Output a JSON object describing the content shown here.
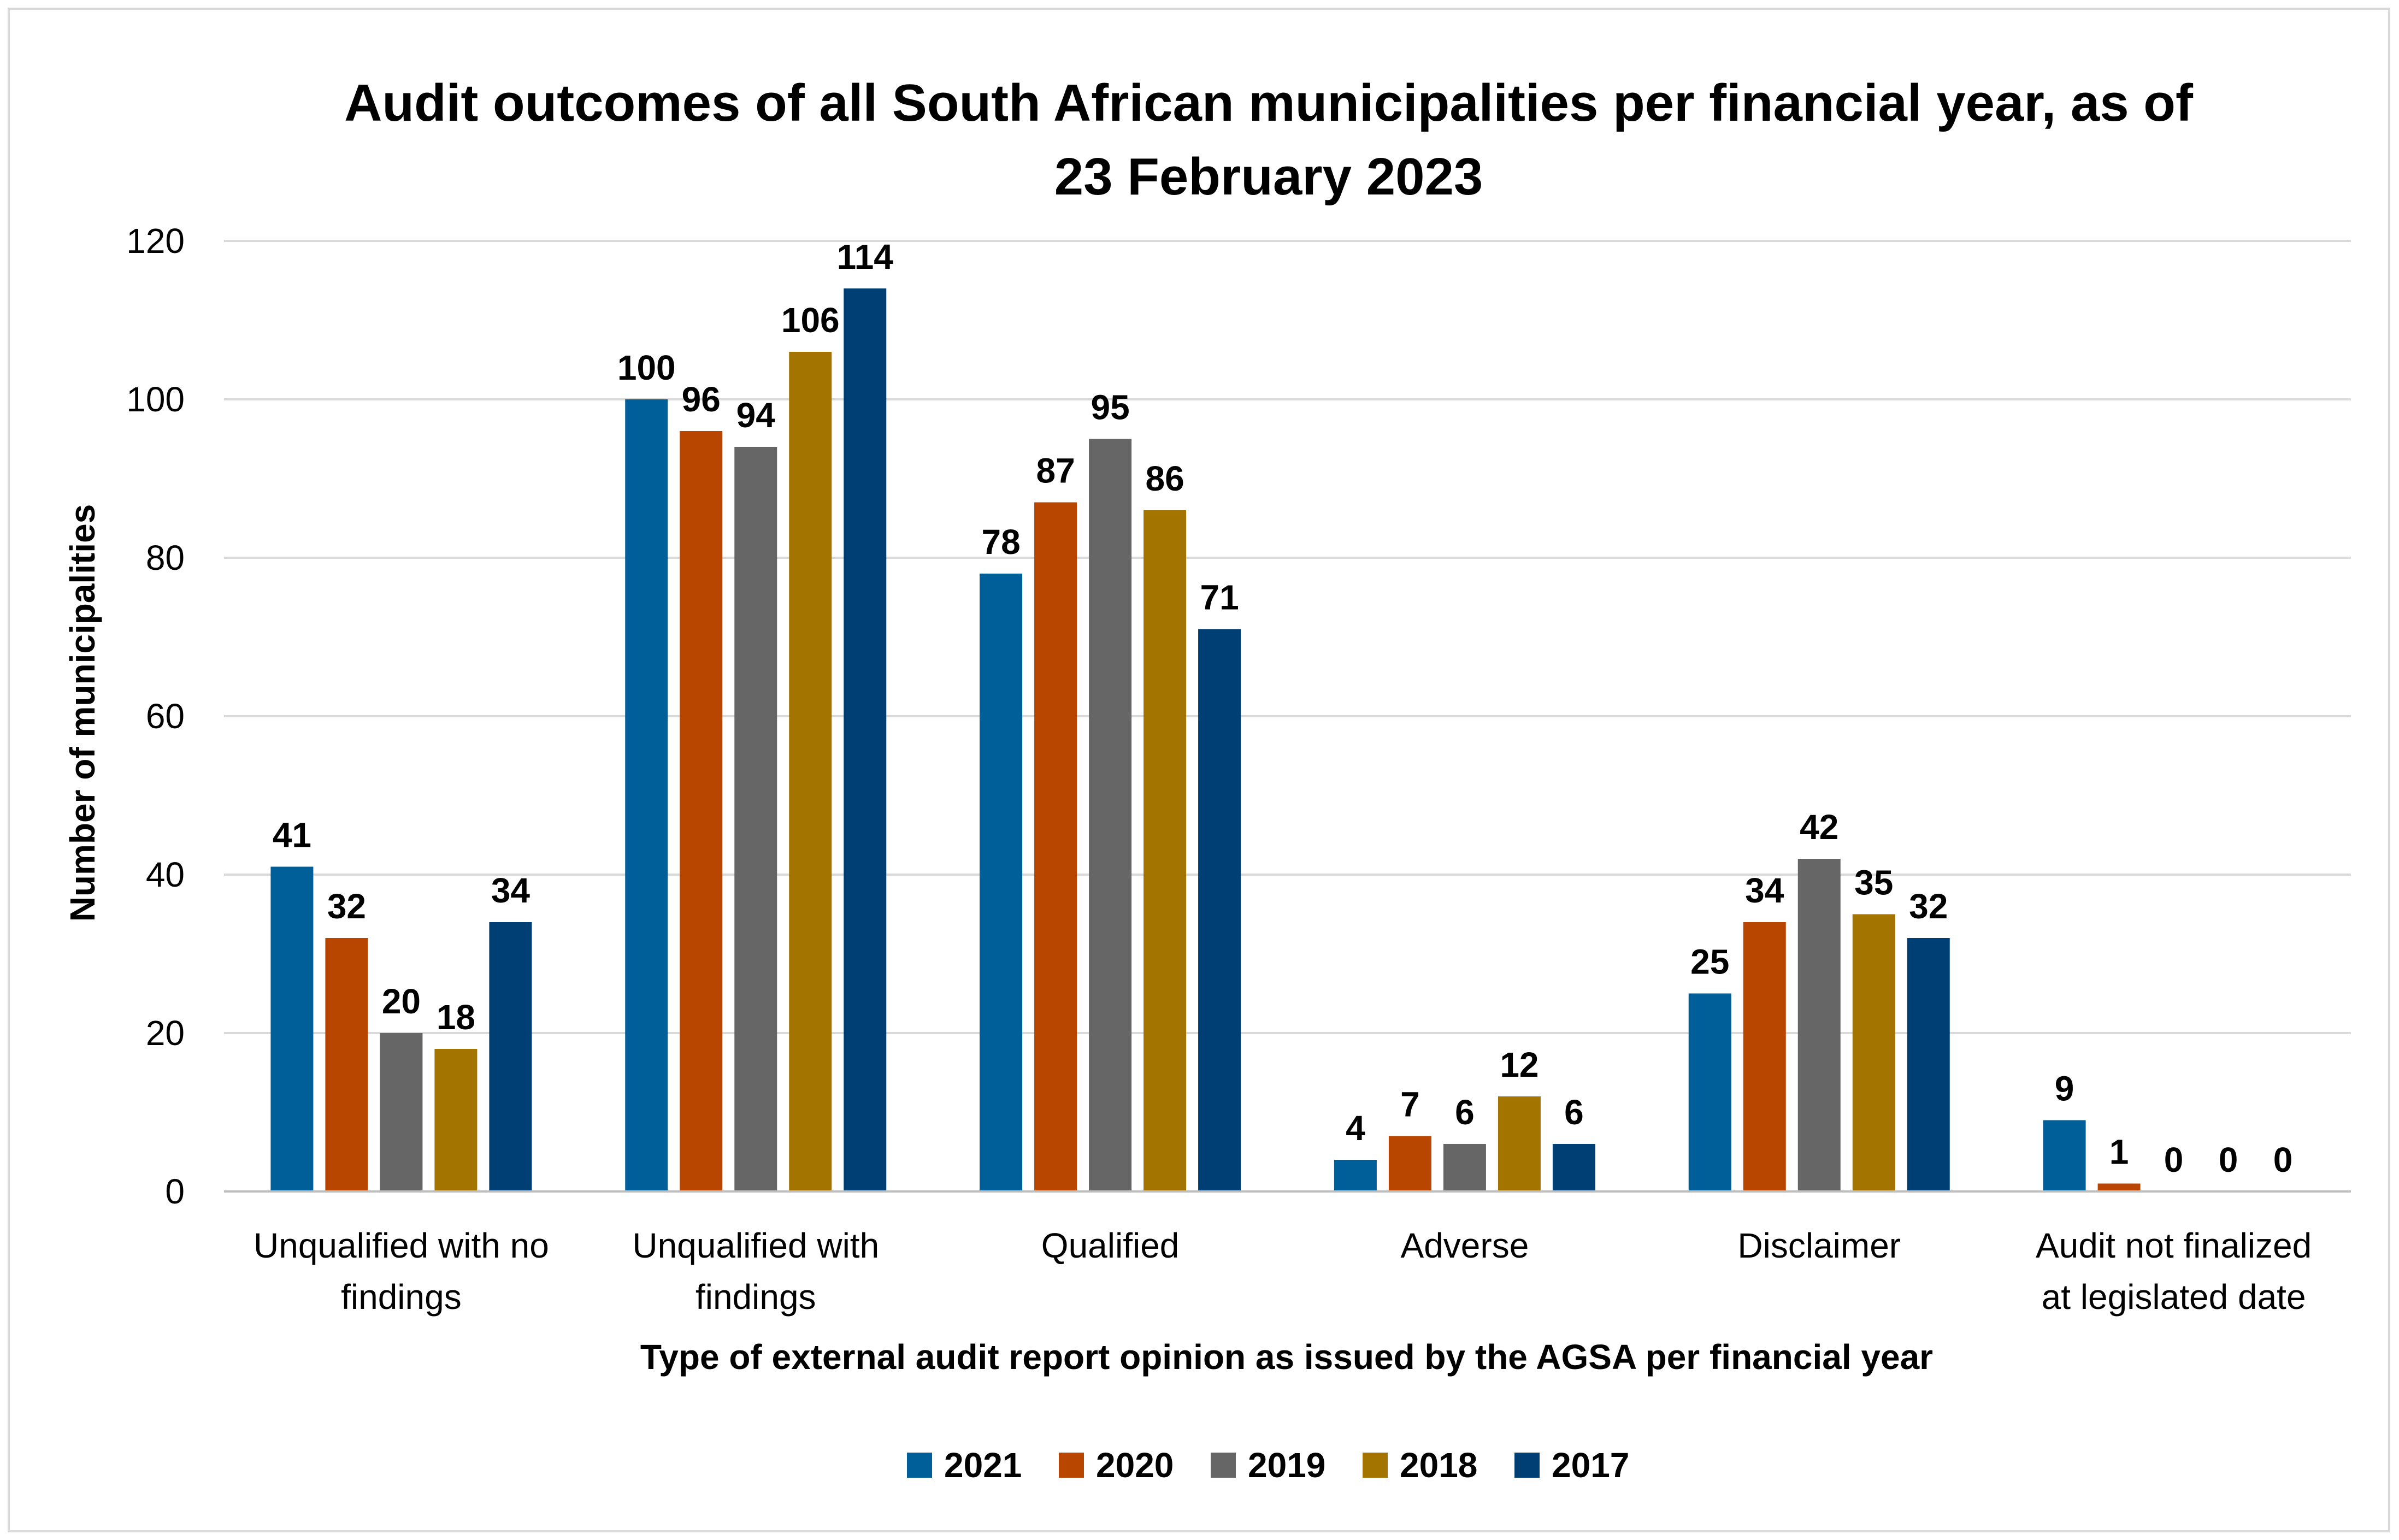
{
  "chart_data": {
    "type": "bar",
    "title_lines": [
      "Audit outcomes of all South African municipalities per financial year, as of",
      "23 February 2023"
    ],
    "xlabel": "Type of external audit report opinion as issued by the AGSA per financial year",
    "ylabel": "Number of municipalities",
    "ylim": [
      0,
      120
    ],
    "yticks": [
      0,
      20,
      40,
      60,
      80,
      100,
      120
    ],
    "grid": true,
    "legend_position": "bottom",
    "categories": [
      [
        "Unqualified with no",
        "findings"
      ],
      [
        "Unqualified with",
        "findings"
      ],
      [
        "Qualified"
      ],
      [
        "Adverse"
      ],
      [
        "Disclaimer"
      ],
      [
        "Audit not finalized",
        "at legislated date"
      ]
    ],
    "series": [
      {
        "name": "2021",
        "color": "#005f99",
        "values": [
          41,
          100,
          78,
          4,
          25,
          9
        ]
      },
      {
        "name": "2020",
        "color": "#b84500",
        "values": [
          32,
          96,
          87,
          7,
          34,
          1
        ]
      },
      {
        "name": "2019",
        "color": "#666666",
        "values": [
          20,
          94,
          95,
          6,
          42,
          0
        ]
      },
      {
        "name": "2018",
        "color": "#a37400",
        "values": [
          18,
          106,
          86,
          12,
          35,
          0
        ]
      },
      {
        "name": "2017",
        "color": "#003f73",
        "values": [
          34,
          114,
          71,
          6,
          32,
          0
        ]
      }
    ]
  }
}
